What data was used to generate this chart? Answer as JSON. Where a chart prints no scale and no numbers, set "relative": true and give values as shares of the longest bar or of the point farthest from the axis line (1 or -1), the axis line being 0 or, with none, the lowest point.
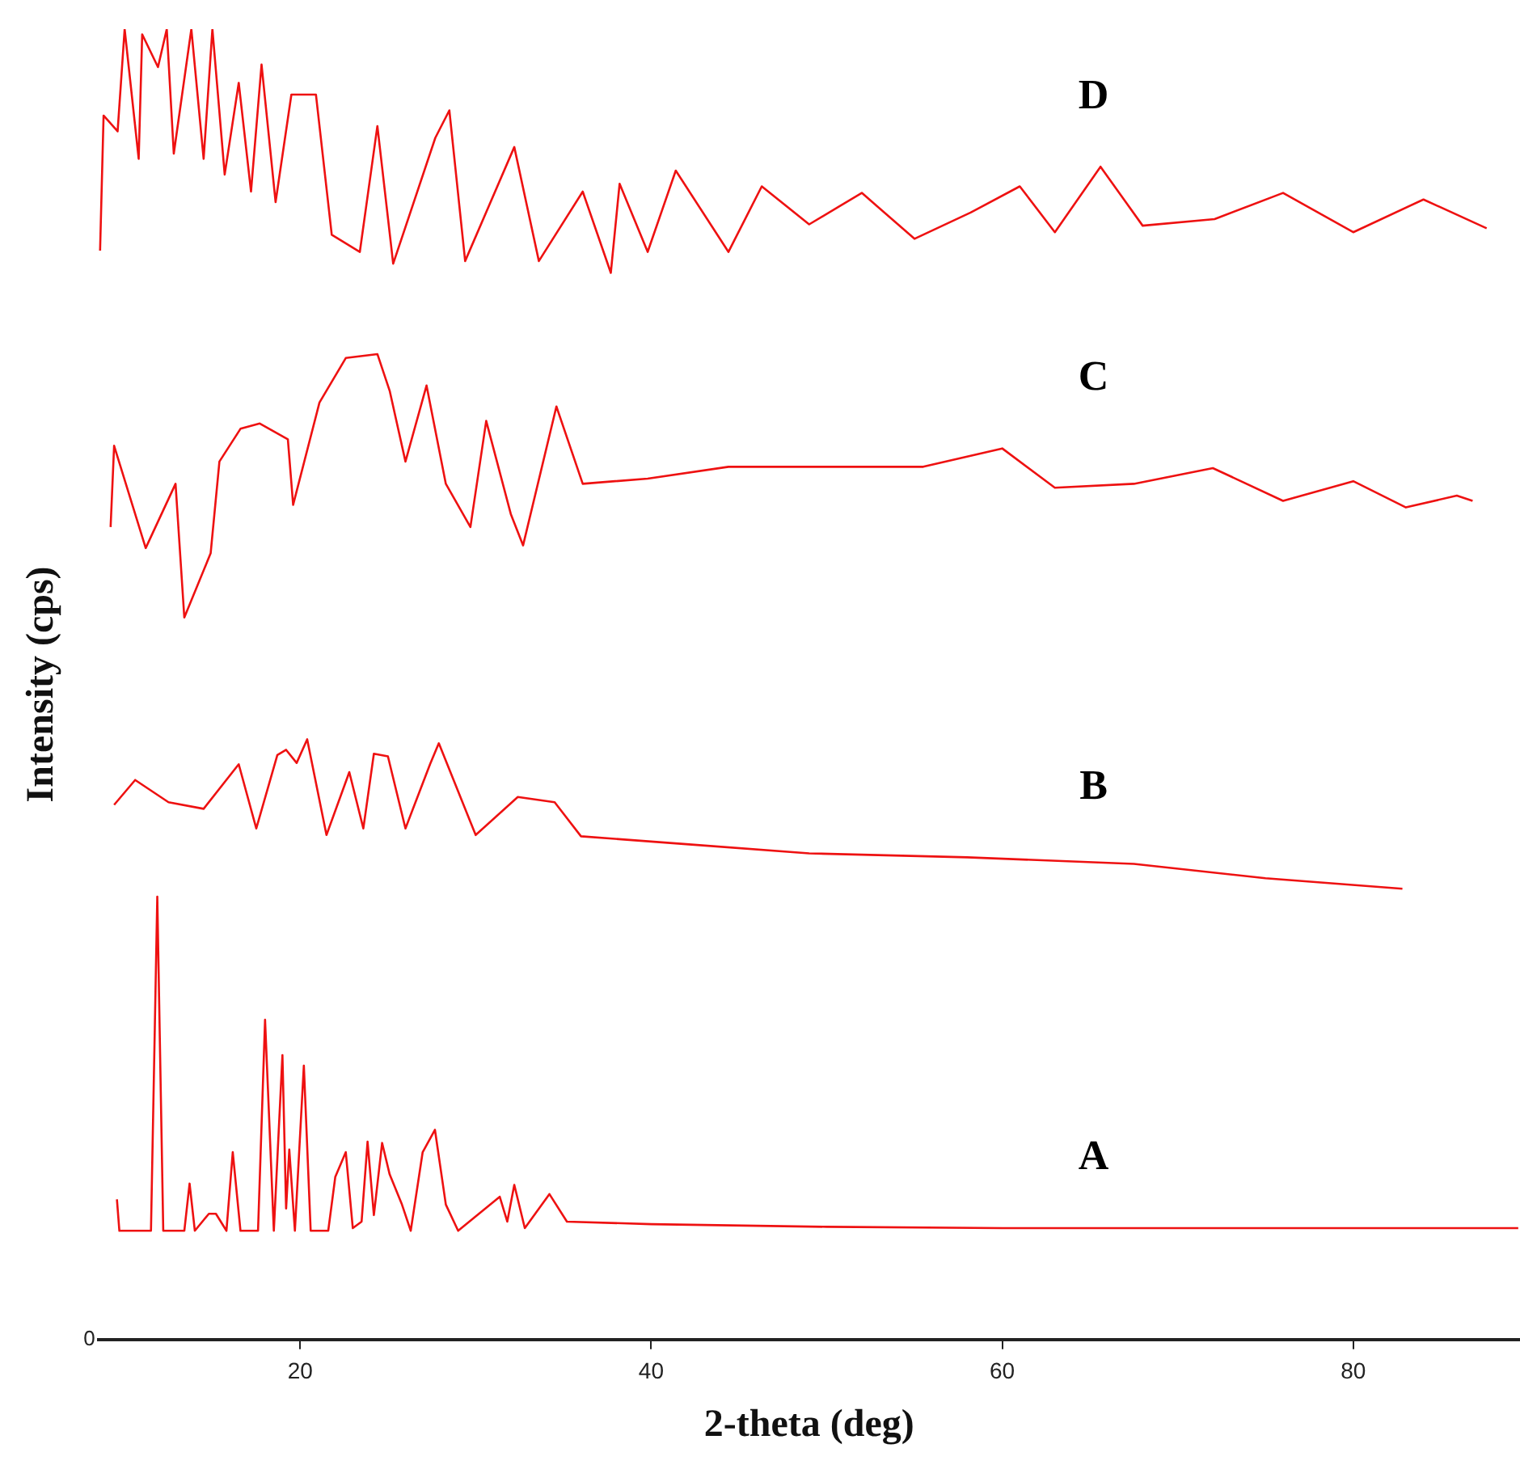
{
  "chart_data": {
    "type": "line",
    "relative": true,
    "xlabel": "2-theta (deg)",
    "ylabel": "Intensity (cps)",
    "xlim": [
      8.5,
      89.5
    ],
    "xticks": [
      20,
      40,
      60,
      80
    ],
    "grid": false,
    "legend": false,
    "marker": "none",
    "tick_labels": "x",
    "annotations": [
      "0"
    ],
    "series": [
      {
        "name": "D",
        "color": "#ee1111",
        "x": [
          8.6,
          8.8,
          9.6,
          10.0,
          10.8,
          11.0,
          11.9,
          12.4,
          12.8,
          13.8,
          14.5,
          15.0,
          15.7,
          16.5,
          17.2,
          17.8,
          18.6,
          19.5,
          20.9,
          21.8,
          23.4,
          24.4,
          25.3,
          27.7,
          28.5,
          29.4,
          32.2,
          33.6,
          36.1,
          37.7,
          38.2,
          39.8,
          41.4,
          44.4,
          46.3,
          49.0,
          52.0,
          55.0,
          58.2,
          61.0,
          63.0,
          65.6,
          68.0,
          72.1,
          76.0,
          80.0,
          84.0,
          87.6
        ],
        "values": [
          0.831,
          0.934,
          0.922,
          1.0,
          0.901,
          0.996,
          0.971,
          1.0,
          0.905,
          1.0,
          0.901,
          1.0,
          0.889,
          0.959,
          0.876,
          0.973,
          0.868,
          0.95,
          0.95,
          0.843,
          0.83,
          0.926,
          0.821,
          0.917,
          0.938,
          0.823,
          0.91,
          0.823,
          0.876,
          0.814,
          0.882,
          0.83,
          0.892,
          0.83,
          0.88,
          0.851,
          0.875,
          0.84,
          0.86,
          0.88,
          0.845,
          0.895,
          0.85,
          0.855,
          0.875,
          0.845,
          0.87,
          0.848
        ]
      },
      {
        "name": "C",
        "color": "#ee1111",
        "x": [
          9.2,
          9.4,
          11.2,
          12.9,
          13.4,
          14.9,
          15.4,
          16.6,
          17.7,
          19.3,
          19.6,
          21.1,
          22.6,
          24.4,
          25.1,
          26.0,
          27.2,
          28.3,
          29.7,
          30.6,
          32.0,
          32.7,
          34.6,
          36.1,
          39.8,
          44.4,
          49.0,
          55.5,
          60.0,
          63.0,
          67.5,
          72.0,
          76.0,
          80.0,
          83.0,
          85.9,
          86.8
        ],
        "values": [
          0.62,
          0.682,
          0.604,
          0.653,
          0.551,
          0.6,
          0.67,
          0.695,
          0.699,
          0.687,
          0.637,
          0.715,
          0.749,
          0.752,
          0.724,
          0.67,
          0.728,
          0.653,
          0.62,
          0.701,
          0.63,
          0.606,
          0.712,
          0.653,
          0.657,
          0.666,
          0.666,
          0.666,
          0.68,
          0.65,
          0.653,
          0.665,
          0.64,
          0.655,
          0.635,
          0.644,
          0.64
        ]
      },
      {
        "name": "B",
        "color": "#ee1111",
        "x": [
          9.4,
          10.6,
          12.5,
          14.5,
          16.5,
          17.5,
          18.7,
          19.2,
          19.8,
          20.4,
          21.5,
          22.8,
          23.6,
          24.2,
          25.0,
          26.0,
          27.4,
          27.9,
          30.0,
          32.4,
          34.5,
          36.0,
          42.0,
          49.0,
          58.0,
          67.5,
          75.0,
          82.8
        ],
        "values": [
          0.408,
          0.427,
          0.41,
          0.405,
          0.439,
          0.39,
          0.446,
          0.45,
          0.44,
          0.458,
          0.385,
          0.433,
          0.39,
          0.447,
          0.445,
          0.39,
          0.439,
          0.455,
          0.385,
          0.414,
          0.41,
          0.384,
          0.378,
          0.371,
          0.368,
          0.363,
          0.352,
          0.344
        ]
      },
      {
        "name": "A",
        "color": "#ee1111",
        "x": [
          9.56,
          9.7,
          11.5,
          11.86,
          12.2,
          13.4,
          13.7,
          14.0,
          14.8,
          15.2,
          15.8,
          16.16,
          16.6,
          17.6,
          18.0,
          18.5,
          18.99,
          19.2,
          19.38,
          19.7,
          20.21,
          20.6,
          21.6,
          22.0,
          22.6,
          23.0,
          23.5,
          23.84,
          24.2,
          24.67,
          25.1,
          25.8,
          26.3,
          26.98,
          27.68,
          28.3,
          29.0,
          31.37,
          31.8,
          32.2,
          32.8,
          34.2,
          35.2,
          40.0,
          50.0,
          60.0,
          70.0,
          80.0,
          89.4
        ],
        "values": [
          0.107,
          0.083,
          0.083,
          0.338,
          0.083,
          0.083,
          0.119,
          0.083,
          0.096,
          0.096,
          0.083,
          0.143,
          0.083,
          0.083,
          0.244,
          0.083,
          0.217,
          0.1,
          0.145,
          0.083,
          0.209,
          0.083,
          0.083,
          0.124,
          0.143,
          0.085,
          0.09,
          0.151,
          0.095,
          0.15,
          0.126,
          0.103,
          0.083,
          0.143,
          0.16,
          0.103,
          0.083,
          0.109,
          0.09,
          0.118,
          0.085,
          0.111,
          0.09,
          0.088,
          0.086,
          0.085,
          0.085,
          0.085,
          0.085
        ]
      }
    ]
  }
}
